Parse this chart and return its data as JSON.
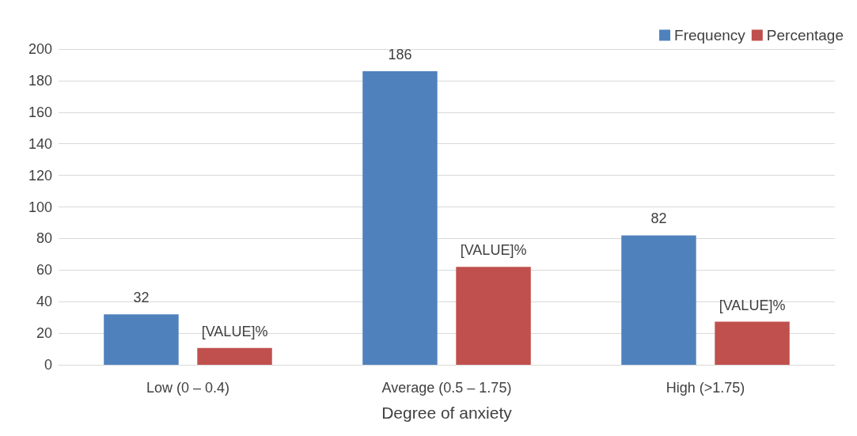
{
  "chart_data": {
    "type": "bar",
    "xlabel": "Degree of anxiety",
    "categories": [
      "Low (0 – 0.4)",
      "Average (0.5 – 1.75)",
      "High (>1.75)"
    ],
    "series": [
      {
        "name": "Frequency",
        "color": "#4f81bd",
        "values": [
          32,
          186,
          82
        ],
        "value_labels": [
          "32",
          "186",
          "82"
        ]
      },
      {
        "name": "Percentage",
        "color": "#c0504d",
        "values": [
          10.7,
          62,
          27.3
        ],
        "value_labels": [
          "[VALUE]%",
          "[VALUE]%",
          "[VALUE]%"
        ]
      }
    ],
    "ylim": [
      0,
      200
    ],
    "yticks": [
      0,
      20,
      40,
      60,
      80,
      100,
      120,
      140,
      160,
      180,
      200
    ],
    "grid": "y",
    "legend": "top right"
  }
}
